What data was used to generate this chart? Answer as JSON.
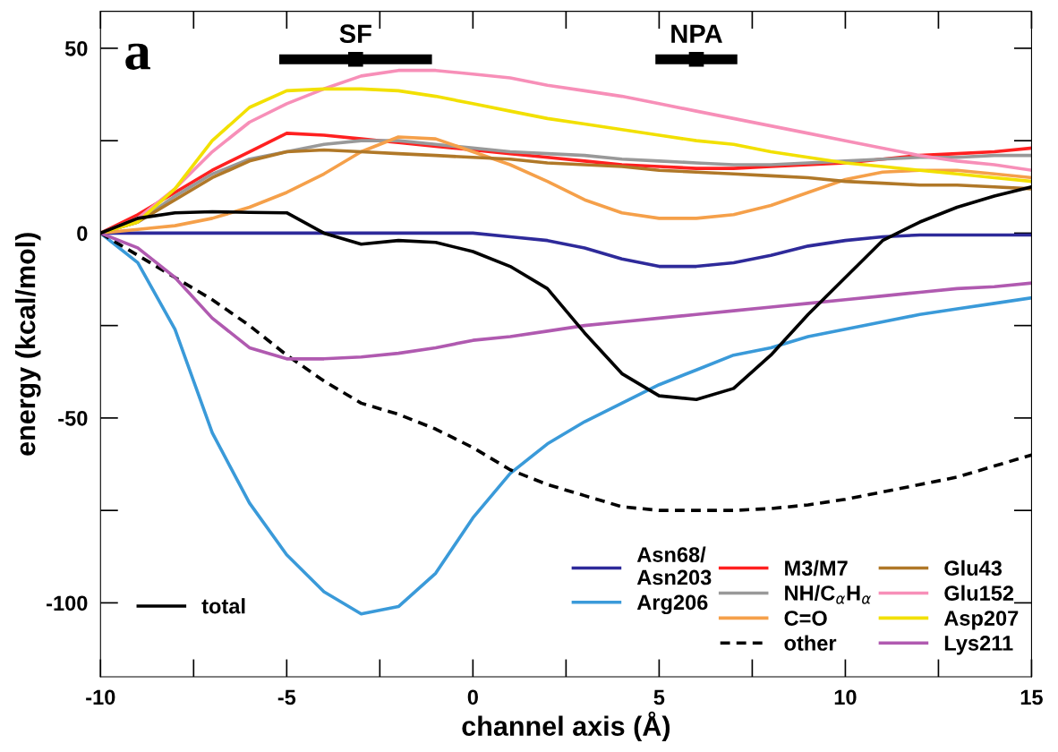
{
  "chart_data": {
    "type": "line",
    "xlabel": "channel axis (Å)",
    "ylabel": "energy (kcal/mol)",
    "x": [
      -10,
      -9,
      -8,
      -7,
      -6,
      -5,
      -4,
      -3,
      -2,
      -1,
      0,
      1,
      2,
      3,
      4,
      5,
      6,
      7,
      8,
      9,
      10,
      11,
      12,
      13,
      14,
      15
    ],
    "xlim": [
      -10,
      15
    ],
    "ylim": [
      -120,
      60
    ],
    "xticks": [
      -10,
      -5,
      0,
      5,
      10,
      15
    ],
    "yticks": [
      -100,
      -50,
      0,
      50
    ],
    "grid": false,
    "legend": "bottom right",
    "line_style": "solid",
    "marker": "none",
    "series": [
      {
        "name": "total",
        "color": "#000000",
        "values": [
          0,
          4,
          5.5,
          5.8,
          5.6,
          5.5,
          0,
          -3,
          -2,
          -2.5,
          -5,
          -9,
          -15,
          -27,
          -38,
          -44,
          -45,
          -42,
          -33,
          -22,
          -12,
          -2,
          3,
          7,
          10,
          12.5
        ]
      },
      {
        "name": "Asn68/\nAsn203",
        "color": "#2e2a9a",
        "values": [
          0,
          0,
          0,
          0,
          0,
          0,
          0,
          0,
          0,
          0,
          0,
          -1,
          -2,
          -4,
          -7,
          -9,
          -9,
          -8,
          -6,
          -3.5,
          -2,
          -1,
          -0.5,
          -0.5,
          -0.5,
          -0.5
        ]
      },
      {
        "name": "Arg206",
        "color": "#3a9ad9",
        "values": [
          0,
          -8,
          -26,
          -54,
          -73,
          -87,
          -97,
          -103,
          -101,
          -92,
          -77,
          -65,
          -57,
          -51,
          -46,
          -41,
          -37,
          -33,
          -31,
          -28,
          -26,
          -24,
          -22,
          -20.5,
          -19,
          -17.5
        ]
      },
      {
        "name": "M3/M7",
        "color": "#ff2020",
        "values": [
          0,
          5,
          11,
          17,
          22,
          27,
          26.5,
          25.5,
          24.5,
          23.5,
          22.5,
          21.5,
          20.5,
          19.5,
          18.5,
          18,
          17.5,
          17.5,
          18,
          18.5,
          19,
          20,
          21,
          21.5,
          22,
          23
        ]
      },
      {
        "name": "NH/C$_{α}$H$_{α}$",
        "color": "#999999",
        "values": [
          0,
          3,
          10,
          16,
          20,
          22,
          24,
          25,
          25,
          24,
          23,
          22,
          21.5,
          21,
          20,
          19.5,
          19,
          18.5,
          18.5,
          19,
          19.5,
          20,
          20.5,
          20.5,
          21,
          21
        ]
      },
      {
        "name": "C=O",
        "color": "#f5a04a",
        "values": [
          0,
          1,
          2,
          4,
          7,
          11,
          16,
          22,
          26,
          25.5,
          22,
          18.5,
          14,
          9,
          5.5,
          4,
          4,
          5,
          7.5,
          11,
          14.5,
          16.5,
          17,
          17,
          16,
          15
        ]
      },
      {
        "name": "other",
        "color": "#000000",
        "line_style": "dashed",
        "values": [
          0,
          -6,
          -12,
          -18,
          -25,
          -33,
          -40,
          -46,
          -49,
          -53,
          -58,
          -64,
          -68,
          -71,
          -74,
          -75,
          -75,
          -75,
          -74.5,
          -73.5,
          -72,
          -70,
          -68,
          -66,
          -63,
          -60
        ]
      },
      {
        "name": "Glu43",
        "color": "#b07828",
        "values": [
          0,
          3,
          9,
          15,
          19.5,
          22,
          22.5,
          22,
          21.5,
          21,
          20.5,
          20,
          19,
          18.5,
          18,
          17,
          16.5,
          16,
          15.5,
          15,
          14,
          13.5,
          13,
          13,
          12.5,
          12
        ]
      },
      {
        "name": "Glu152",
        "color": "#f78fb8",
        "values": [
          0,
          4,
          12,
          22,
          30,
          35,
          39,
          42.5,
          44,
          44,
          43,
          42,
          40,
          38.5,
          37,
          35,
          33,
          31,
          29,
          27,
          25,
          23,
          21,
          19.5,
          18.5,
          17
        ]
      },
      {
        "name": "Asp207",
        "color": "#f2e000",
        "values": [
          0,
          3,
          12,
          25,
          34,
          38.5,
          39,
          39,
          38.5,
          37,
          35,
          33,
          31,
          29.5,
          28,
          26.5,
          25,
          24,
          22,
          20.5,
          19,
          18,
          17,
          16,
          15,
          14
        ]
      },
      {
        "name": "Lys211",
        "color": "#b05ab0",
        "values": [
          0,
          -4,
          -12,
          -23,
          -31,
          -34,
          -34,
          -33.5,
          -32.5,
          -31,
          -29,
          -28,
          -26.5,
          -25,
          -24,
          -23,
          -22,
          -21,
          -20,
          -19,
          -18,
          -17,
          -16,
          -15,
          -14.5,
          -13.5
        ]
      },
      {
        "type": "scatter",
        "color": "#000000",
        "x": [
          -3.15,
          6.0
        ],
        "values": [
          47,
          47
        ],
        "marker": "square",
        "xerrors": [
          [
            -5.2,
            -1.1
          ],
          [
            4.9,
            7.1
          ]
        ],
        "value_labels": [
          "SF",
          "NPA"
        ]
      }
    ],
    "annotations": [
      "a"
    ]
  }
}
